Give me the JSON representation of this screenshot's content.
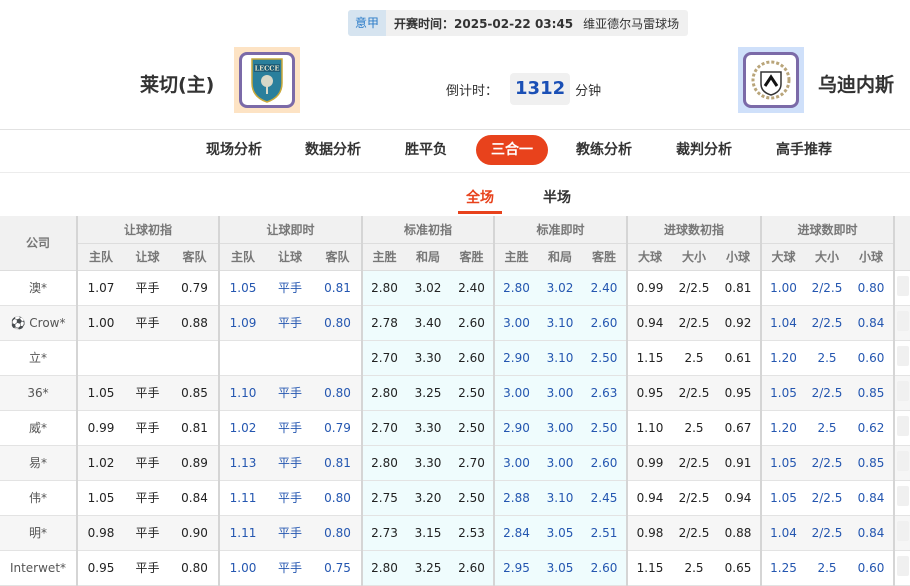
{
  "header": {
    "league": "意甲",
    "match_time": "开赛时间：2025-02-22 03:45",
    "venue": "维亚德尔马雷球场",
    "home_team": "莱切(主)",
    "away_team": "乌迪内斯",
    "countdown_label": "倒计时：",
    "countdown_value": "1312",
    "countdown_unit": "分钟",
    "home_logo_text": "LECCE"
  },
  "nav": {
    "items": [
      "现场分析",
      "数据分析",
      "胜平负",
      "三合一",
      "教练分析",
      "裁判分析",
      "高手推荐"
    ],
    "active": "三合一"
  },
  "sub_tabs": {
    "items": [
      "全场",
      "半场"
    ],
    "active": "全场"
  },
  "table": {
    "company_header": "公司",
    "groups": [
      "让球初指",
      "让球即时",
      "标准初指",
      "标准即时",
      "进球数初指",
      "进球数即时"
    ],
    "subheaders": [
      "主队",
      "让球",
      "客队",
      "主队",
      "让球",
      "客队",
      "主胜",
      "和局",
      "客胜",
      "主胜",
      "和局",
      "客胜",
      "大球",
      "大小",
      "小球",
      "大球",
      "大小",
      "小球"
    ],
    "rows": [
      {
        "company": "澳*",
        "values": [
          "1.07",
          "平手",
          "0.79",
          "1.05",
          "平手",
          "0.81",
          "2.80",
          "3.02",
          "2.40",
          "2.80",
          "3.02",
          "2.40",
          "0.99",
          "2/2.5",
          "0.81",
          "1.00",
          "2/2.5",
          "0.80"
        ]
      },
      {
        "company": "Crow*",
        "icon": "soccer-ball-icon",
        "values": [
          "1.00",
          "平手",
          "0.88",
          "1.09",
          "平手",
          "0.80",
          "2.78",
          "3.40",
          "2.60",
          "3.00",
          "3.10",
          "2.60",
          "0.94",
          "2/2.5",
          "0.92",
          "1.04",
          "2/2.5",
          "0.84"
        ]
      },
      {
        "company": "立*",
        "values": [
          "",
          "",
          "",
          "",
          "",
          "",
          "2.70",
          "3.30",
          "2.60",
          "2.90",
          "3.10",
          "2.50",
          "1.15",
          "2.5",
          "0.61",
          "1.20",
          "2.5",
          "0.60"
        ]
      },
      {
        "company": "36*",
        "values": [
          "1.05",
          "平手",
          "0.85",
          "1.10",
          "平手",
          "0.80",
          "2.80",
          "3.25",
          "2.50",
          "3.00",
          "3.00",
          "2.63",
          "0.95",
          "2/2.5",
          "0.95",
          "1.05",
          "2/2.5",
          "0.85"
        ]
      },
      {
        "company": "威*",
        "values": [
          "0.99",
          "平手",
          "0.81",
          "1.02",
          "平手",
          "0.79",
          "2.70",
          "3.30",
          "2.50",
          "2.90",
          "3.00",
          "2.50",
          "1.10",
          "2.5",
          "0.67",
          "1.20",
          "2.5",
          "0.62"
        ]
      },
      {
        "company": "易*",
        "values": [
          "1.02",
          "平手",
          "0.89",
          "1.13",
          "平手",
          "0.81",
          "2.80",
          "3.30",
          "2.70",
          "3.00",
          "3.00",
          "2.60",
          "0.99",
          "2/2.5",
          "0.91",
          "1.05",
          "2/2.5",
          "0.85"
        ]
      },
      {
        "company": "伟*",
        "values": [
          "1.05",
          "平手",
          "0.84",
          "1.11",
          "平手",
          "0.80",
          "2.75",
          "3.20",
          "2.50",
          "2.88",
          "3.10",
          "2.45",
          "0.94",
          "2/2.5",
          "0.94",
          "1.05",
          "2/2.5",
          "0.84"
        ]
      },
      {
        "company": "明*",
        "values": [
          "0.98",
          "平手",
          "0.90",
          "1.11",
          "平手",
          "0.80",
          "2.73",
          "3.15",
          "2.53",
          "2.84",
          "3.05",
          "2.51",
          "0.98",
          "2/2.5",
          "0.88",
          "1.04",
          "2/2.5",
          "0.84"
        ]
      },
      {
        "company": "Interwet*",
        "values": [
          "0.95",
          "平手",
          "0.80",
          "1.00",
          "平手",
          "0.75",
          "2.80",
          "3.25",
          "2.60",
          "2.95",
          "3.05",
          "2.60",
          "1.15",
          "2.5",
          "0.65",
          "1.25",
          "2.5",
          "0.60"
        ]
      }
    ]
  },
  "colors": {
    "accent": "#e8421c",
    "live_odds": "#2456b0",
    "standard_bg": "#effcfd"
  }
}
